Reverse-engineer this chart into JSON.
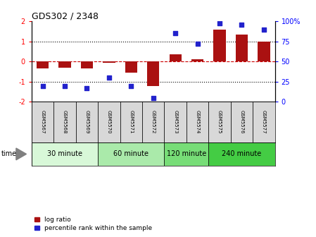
{
  "title": "GDS302 / 2348",
  "samples": [
    "GSM5567",
    "GSM5568",
    "GSM5569",
    "GSM5570",
    "GSM5571",
    "GSM5572",
    "GSM5573",
    "GSM5574",
    "GSM5575",
    "GSM5576",
    "GSM5577"
  ],
  "log_ratio": [
    -0.35,
    -0.3,
    -0.35,
    -0.05,
    -0.55,
    -1.2,
    0.35,
    0.12,
    1.6,
    1.35,
    1.0
  ],
  "percentile": [
    20,
    20,
    17,
    30,
    20,
    5,
    85,
    72,
    98,
    96,
    90
  ],
  "bar_color": "#aa1111",
  "dot_color": "#2222cc",
  "ylim_left": [
    -2,
    2
  ],
  "ylim_right": [
    0,
    100
  ],
  "yticks_left": [
    -2,
    -1,
    0,
    1,
    2
  ],
  "yticks_right": [
    0,
    25,
    50,
    75,
    100
  ],
  "ytick_labels_right": [
    "0",
    "25",
    "50",
    "75",
    "100%"
  ],
  "hlines_dotted": [
    -1,
    1
  ],
  "hline_dashed_color": "#cc0000",
  "groups": [
    {
      "label": "30 minute",
      "start": 0,
      "end": 3,
      "color": "#d8f8d8"
    },
    {
      "label": "60 minute",
      "start": 3,
      "end": 6,
      "color": "#aaeaaa"
    },
    {
      "label": "120 minute",
      "start": 6,
      "end": 8,
      "color": "#77dd77"
    },
    {
      "label": "240 minute",
      "start": 8,
      "end": 11,
      "color": "#44cc44"
    }
  ],
  "time_label": "time",
  "legend_bar_label": "log ratio",
  "legend_dot_label": "percentile rank within the sample",
  "bar_width": 0.55
}
